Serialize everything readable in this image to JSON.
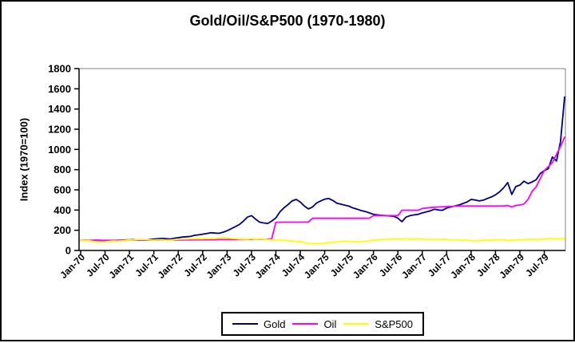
{
  "chart_data": {
    "type": "line",
    "title": "Gold/Oil/S&P500 (1970-1980)",
    "xlabel": "",
    "ylabel": "Index (1970=100)",
    "ylim": [
      0,
      1800
    ],
    "y_tick_step": 200,
    "y_tick_labels": [
      "0",
      "200",
      "400",
      "600",
      "800",
      "1000",
      "1200",
      "1400",
      "1600",
      "1800"
    ],
    "x_tick_labels": [
      "Jan-70",
      "Jul-70",
      "Jan-71",
      "Jul-71",
      "Jan-72",
      "Jul-72",
      "Jan-73",
      "Jul-73",
      "Jan-74",
      "Jul-74",
      "Jan-75",
      "Jul-75",
      "Jan-76",
      "Jul-76",
      "Jan-77",
      "Jul-77",
      "Jan-78",
      "Jul-78",
      "Jan-79",
      "Jul-79"
    ],
    "x_months_per_tick": 6,
    "grid": "off",
    "legend_position": "bottom",
    "series": [
      {
        "name": "Gold",
        "color": "#000080",
        "values": [
          100,
          99,
          98,
          100,
          101,
          100,
          98,
          96,
          98,
          100,
          102,
          104,
          106,
          108,
          105,
          104,
          106,
          109,
          112,
          116,
          119,
          116,
          114,
          121,
          126,
          133,
          136,
          139,
          150,
          155,
          161,
          168,
          175,
          172,
          170,
          181,
          195,
          215,
          235,
          256,
          290,
          330,
          345,
          310,
          280,
          272,
          268,
          291,
          322,
          382,
          422,
          455,
          490,
          505,
          480,
          440,
          411,
          430,
          470,
          490,
          508,
          515,
          495,
          468,
          458,
          448,
          438,
          420,
          408,
          395,
          385,
          372,
          358,
          352,
          348,
          345,
          342,
          338,
          320,
          285,
          330,
          345,
          352,
          358,
          372,
          382,
          392,
          408,
          400,
          398,
          420,
          430,
          440,
          450,
          465,
          480,
          505,
          500,
          490,
          498,
          515,
          530,
          550,
          580,
          620,
          672,
          555,
          632,
          647,
          685,
          662,
          678,
          700,
          760,
          790,
          810,
          925,
          885,
          1080,
          1520
        ]
      },
      {
        "name": "Oil",
        "color": "#FF00FF",
        "values": [
          100,
          100,
          100,
          100,
          100,
          100,
          100,
          100,
          100,
          100,
          100,
          100,
          103,
          103,
          102,
          102,
          102,
          103,
          103,
          103,
          104,
          104,
          104,
          104,
          104,
          104,
          105,
          105,
          105,
          105,
          106,
          106,
          106,
          106,
          107,
          107,
          107,
          108,
          108,
          109,
          109,
          110,
          110,
          111,
          111,
          112,
          114,
          118,
          278,
          280,
          280,
          280,
          280,
          280,
          280,
          281,
          282,
          318,
          318,
          318,
          318,
          318,
          318,
          318,
          318,
          318,
          318,
          318,
          318,
          318,
          318,
          320,
          345,
          345,
          345,
          345,
          345,
          345,
          345,
          398,
          398,
          398,
          398,
          398,
          415,
          420,
          425,
          428,
          430,
          432,
          434,
          436,
          438,
          440,
          440,
          440,
          440,
          440,
          440,
          440,
          440,
          440,
          440,
          440,
          440,
          445,
          430,
          445,
          450,
          460,
          505,
          585,
          630,
          710,
          790,
          830,
          870,
          950,
          1030,
          1120
        ]
      },
      {
        "name": "S&P500",
        "color": "#FFFF00",
        "values": [
          100,
          96,
          96,
          90,
          85,
          82,
          86,
          90,
          93,
          92,
          95,
          100,
          104,
          105,
          108,
          110,
          108,
          106,
          103,
          106,
          105,
          102,
          101,
          107,
          111,
          113,
          114,
          115,
          116,
          116,
          116,
          119,
          118,
          119,
          123,
          126,
          124,
          119,
          118,
          114,
          112,
          111,
          115,
          111,
          115,
          114,
          108,
          106,
          104,
          103,
          101,
          97,
          93,
          89,
          85,
          79,
          70,
          65,
          69,
          67,
          72,
          77,
          80,
          84,
          88,
          92,
          90,
          88,
          86,
          88,
          91,
          95,
          100,
          105,
          108,
          110,
          111,
          113,
          114,
          113,
          115,
          112,
          111,
          116,
          113,
          110,
          110,
          109,
          108,
          110,
          108,
          106,
          106,
          104,
          104,
          103,
          98,
          96,
          97,
          100,
          102,
          101,
          104,
          107,
          106,
          100,
          102,
          104,
          108,
          106,
          109,
          110,
          108,
          110,
          112,
          116,
          116,
          113,
          115,
          120
        ]
      }
    ]
  }
}
